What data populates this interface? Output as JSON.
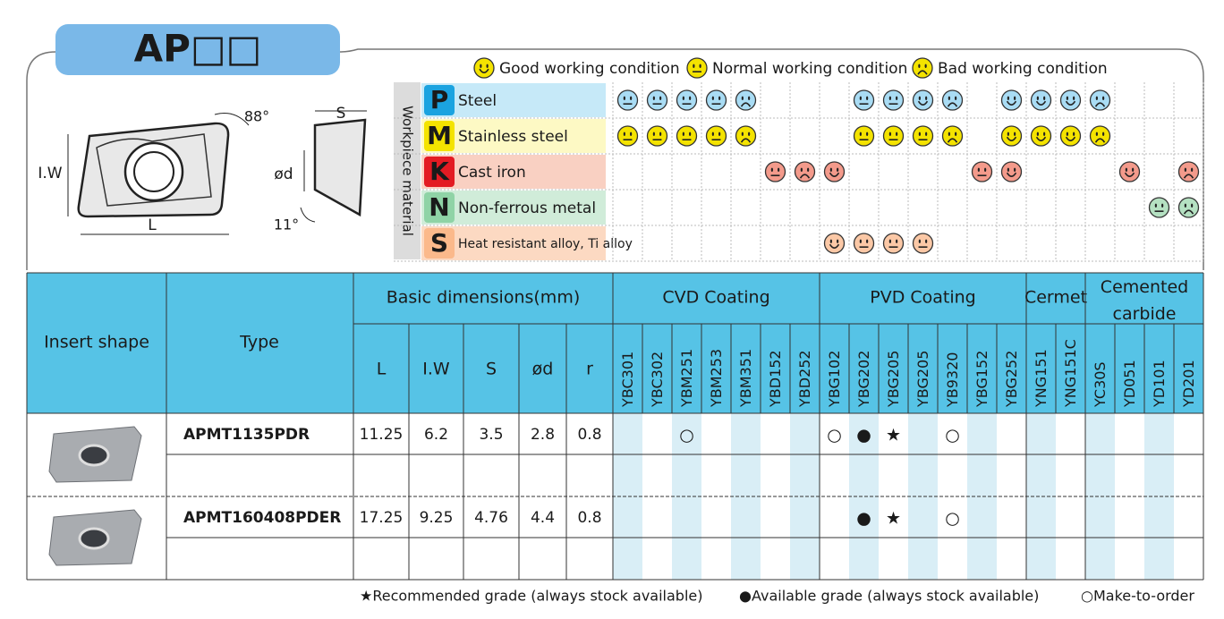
{
  "title": "AP□□",
  "condition_legend": [
    "Good working condition",
    "Normal working condition",
    "Bad working condition"
  ],
  "diagram": {
    "iw": "I.W",
    "l": "L",
    "angle_top": "88°",
    "s": "S",
    "d": "ød",
    "angle_bottom": "11°"
  },
  "material_axis_label": "Workpiece material",
  "materials": [
    {
      "letter": "P",
      "name": "Steel",
      "color": "#1ba3e0",
      "background": "#c6e9f8",
      "icon_color": "#a9dcf4",
      "conditions": [
        1,
        1,
        1,
        1,
        2,
        null,
        null,
        null,
        1,
        1,
        0,
        2,
        null,
        0,
        0,
        0,
        2,
        null,
        null,
        null
      ]
    },
    {
      "letter": "M",
      "name": "Stainless steel",
      "color": "#f4e300",
      "background": "#fdf9c4",
      "icon_color": "#f4e300",
      "conditions": [
        1,
        1,
        1,
        1,
        2,
        null,
        null,
        null,
        1,
        1,
        1,
        2,
        null,
        0,
        0,
        0,
        2,
        null,
        null,
        null
      ]
    },
    {
      "letter": "K",
      "name": "Cast iron",
      "color": "#e31b23",
      "background": "#f9d0c2",
      "icon_color": "#f39a8b",
      "conditions": [
        null,
        null,
        null,
        null,
        null,
        1,
        2,
        0,
        null,
        null,
        null,
        null,
        1,
        0,
        null,
        null,
        null,
        0,
        null,
        2
      ]
    },
    {
      "letter": "N",
      "name": "Non-ferrous metal",
      "color": "#8fd3a6",
      "background": "#d0ecd9",
      "icon_color": "#b5e1c2",
      "conditions": [
        null,
        null,
        null,
        null,
        null,
        null,
        null,
        null,
        null,
        null,
        null,
        null,
        null,
        null,
        null,
        null,
        null,
        null,
        1,
        2
      ]
    },
    {
      "letter": "S",
      "name": "Heat resistant alloy, Ti alloy",
      "color": "#fbb98b",
      "background": "#fcd9c2",
      "icon_color": "#fbc8a6",
      "conditions": [
        null,
        null,
        null,
        null,
        null,
        null,
        null,
        0,
        1,
        1,
        1,
        null,
        null,
        null,
        null,
        null,
        null,
        null,
        null,
        null
      ]
    }
  ],
  "table": {
    "headers": {
      "insert_shape": "Insert shape",
      "type": "Type",
      "basic_dimensions": "Basic dimensions(mm)",
      "dimensions": [
        "L",
        "I.W",
        "S",
        "ød",
        "r"
      ],
      "groups": [
        {
          "name": "CVD Coating",
          "grades": [
            "YBC301",
            "YBC302",
            "YBM251",
            "YBM253",
            "YBM351",
            "YBD152",
            "YBD252"
          ]
        },
        {
          "name": "PVD Coating",
          "grades": [
            "YBG102",
            "YBG202",
            "YBG205",
            "YBG205",
            "YB9320",
            "YBG152",
            "YBG252"
          ]
        },
        {
          "name": "Cermet",
          "grades": [
            "YNG151",
            "YNG151C"
          ]
        },
        {
          "name": "Cemented carbide",
          "grades": [
            "YC30S",
            "YD051",
            "YD101",
            "YD201"
          ]
        }
      ]
    },
    "rows": [
      {
        "type": "APMT1135PDR",
        "dimensions": [
          11.25,
          6.2,
          3.5,
          2.8,
          0.8
        ],
        "grades": [
          null,
          null,
          "○",
          null,
          null,
          null,
          null,
          "○",
          "●",
          "★",
          null,
          "○",
          null,
          null,
          null,
          null,
          null,
          null,
          null,
          null
        ]
      },
      {
        "type": "APMT160408PDER",
        "dimensions": [
          17.25,
          9.25,
          4.76,
          4.4,
          0.8
        ],
        "grades": [
          null,
          null,
          null,
          null,
          null,
          null,
          null,
          null,
          "●",
          "★",
          null,
          "○",
          null,
          null,
          null,
          null,
          null,
          null,
          null,
          null
        ]
      }
    ]
  },
  "footer": [
    "★Recommended grade (always stock available)",
    "●Available grade (always stock available)",
    "○Make-to-order"
  ]
}
